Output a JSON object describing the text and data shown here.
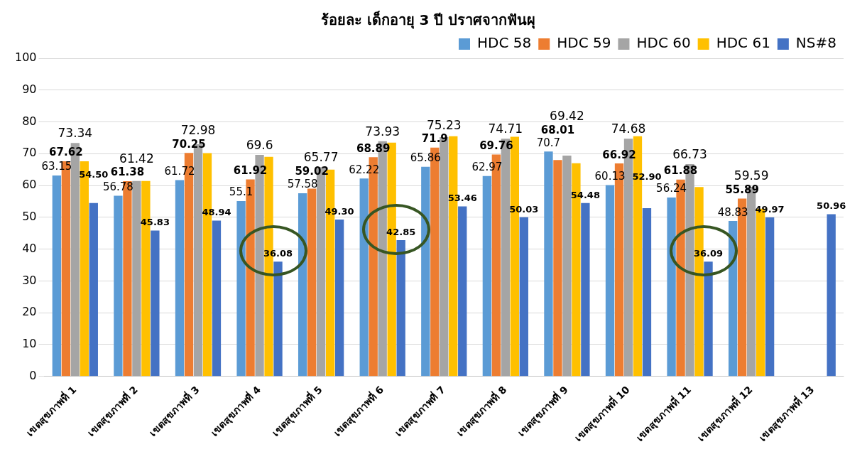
{
  "chart_data": {
    "type": "bar",
    "title": "ร้อยละ เด็กอายุ 3 ปี ปราศจากฟันผุ",
    "categories": [
      "เขตสุขภาพที่ 1",
      "เขตสุขภาพที่ 2",
      "เขตสุขภาพที่ 3",
      "เขตสุขภาพที่ 4",
      "เขตสุขภาพที่ 5",
      "เขตสุขภาพที่ 6",
      "เขตสุขภาพที่ 7",
      "เขตสุขภาพที่ 8",
      "เขตสุขภาพที่ 9",
      "เขตสุขภาพที่ 10",
      "เขตสุขภาพที่ 11",
      "เขตสุขภาพที่ 12",
      "เขตสุขภาพที่ 13"
    ],
    "series": [
      {
        "name": "HDC 58",
        "color": "#5b9bd5",
        "values": [
          63.15,
          56.78,
          61.72,
          55.1,
          57.58,
          62.22,
          65.86,
          62.97,
          70.7,
          60.13,
          56.24,
          48.83,
          null
        ],
        "value_labels": [
          "63.15",
          "56.78",
          "61.72",
          "55.1",
          "57.58",
          "62.22",
          "65.86",
          "62.97",
          "70.7",
          "60.13",
          "56.24",
          "48.83",
          null
        ]
      },
      {
        "name": "HDC 59",
        "color": "#ed7d31",
        "values": [
          67.62,
          61.38,
          70.25,
          61.92,
          59.02,
          68.89,
          71.9,
          69.76,
          68.01,
          66.92,
          61.88,
          55.89,
          null
        ],
        "value_labels": [
          "67.62",
          "61.38",
          "70.25",
          "61.92",
          "59.02",
          "68.89",
          "71.9",
          "69.76",
          "68.01",
          "66.92",
          "61.88",
          "55.89",
          null
        ]
      },
      {
        "name": "HDC 60",
        "color": "#a5a5a5",
        "values": [
          73.34,
          61.42,
          72.98,
          69.6,
          65.77,
          73.93,
          75.23,
          74.71,
          69.42,
          74.68,
          66.73,
          59.59,
          null
        ],
        "value_labels": [
          "73.34",
          "61.42",
          "72.98",
          "69.6",
          "65.77",
          "73.93",
          "75.23",
          "74.71",
          "69.42",
          "74.68",
          "66.73",
          "59.59",
          null
        ]
      },
      {
        "name": "HDC 61",
        "color": "#ffc000",
        "values": [
          67.6,
          61.4,
          70.2,
          69,
          65,
          73.5,
          75.5,
          75.3,
          67,
          75.5,
          59.5,
          52.7,
          null
        ]
      },
      {
        "name": "NS#8",
        "color": "#4472c4",
        "values": [
          54.5,
          45.83,
          48.94,
          36.08,
          49.3,
          42.85,
          53.46,
          50.03,
          54.48,
          52.9,
          36.09,
          49.97,
          50.96
        ],
        "value_labels": [
          "54.50",
          "45.83",
          "48.94",
          "36.08",
          "49.30",
          "42.85",
          "53.46",
          "50.03",
          "54.48",
          "52.90",
          "36.09",
          "49.97",
          "50.96"
        ]
      }
    ],
    "ylim": [
      0,
      100
    ],
    "yticks": [
      0,
      10,
      20,
      30,
      40,
      50,
      60,
      70,
      80,
      90,
      100
    ],
    "grid": "y",
    "legend": "top right"
  }
}
